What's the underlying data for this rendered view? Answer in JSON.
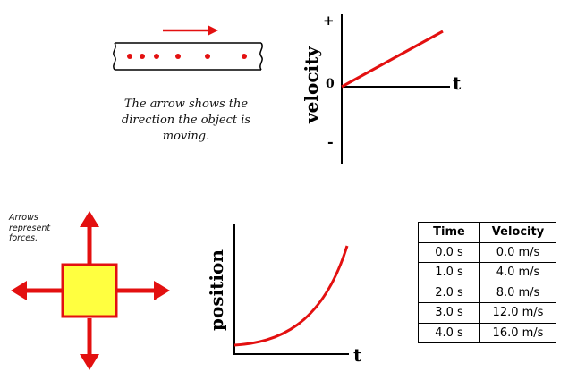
{
  "motion_diagram": {
    "caption_lines": [
      "The arrow shows the",
      "direction the object is",
      "moving."
    ],
    "arrow_color": "#e31010",
    "dot_count": 6
  },
  "velocity_graph": {
    "y_axis_label": "velocity",
    "x_axis_label": "t",
    "plus_label": "+",
    "zero_label": "0",
    "minus_label": "-"
  },
  "force_diagram": {
    "note_lines": [
      "Arrows",
      "represent",
      "forces."
    ],
    "box_color": "#ffff40",
    "arrow_color": "#e31010"
  },
  "position_graph": {
    "y_axis_label": "position",
    "x_axis_label": "t"
  },
  "table": {
    "headers": [
      "Time",
      "Velocity"
    ],
    "rows": [
      [
        "0.0 s",
        "0.0 m/s"
      ],
      [
        "1.0 s",
        "4.0 m/s"
      ],
      [
        "2.0 s",
        "8.0 m/s"
      ],
      [
        "3.0 s",
        "12.0 m/s"
      ],
      [
        "4.0 s",
        "16.0 m/s"
      ]
    ]
  }
}
